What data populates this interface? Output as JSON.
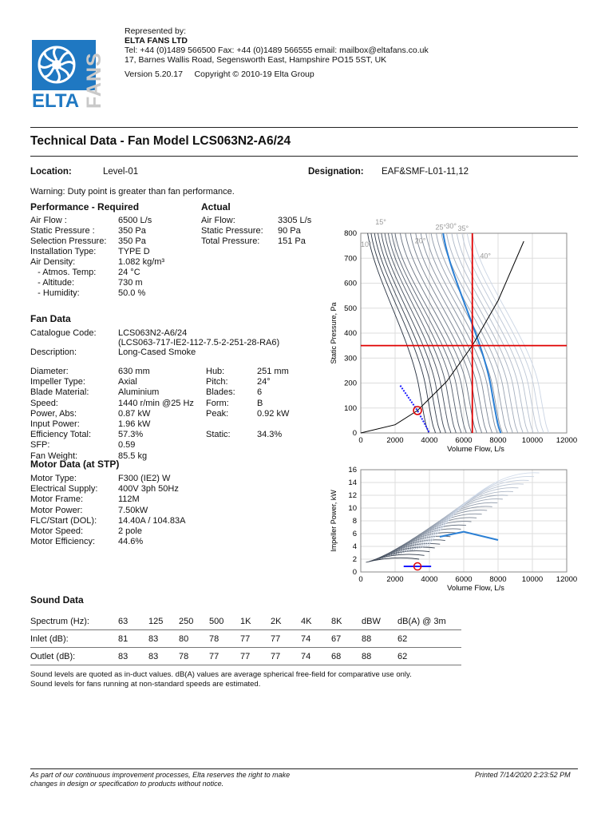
{
  "header": {
    "represented_by": "Represented by:",
    "company": "ELTA FANS LTD",
    "contact": "Tel: +44 (0)1489 566500  Fax: +44 (0)1489 566555  email: mailbox@eltafans.co.uk",
    "address": "17, Barnes Wallis Road, Segensworth East, Hampshire PO15 5ST, UK",
    "version": "Version 5.20.17     Copyright © 2010-19 Elta Group",
    "logo_text": "ELTA",
    "logo_vertical": "FANS"
  },
  "title": "Technical Data - Fan Model LCS063N2-A6/24",
  "location": {
    "label": "Location:",
    "value": "Level-01"
  },
  "designation": {
    "label": "Designation:",
    "value": "EAF&SMF-L01-11,12"
  },
  "warning": "Warning: Duty point is greater than fan performance.",
  "required": {
    "heading": "Performance - Required",
    "rows": [
      {
        "label": "Air Flow :",
        "value": "6500 L/s"
      },
      {
        "label": "Static Pressure :",
        "value": "350 Pa"
      },
      {
        "label": "Selection Pressure:",
        "value": "350 Pa"
      },
      {
        "label": "Installation Type:",
        "value": "TYPE D"
      },
      {
        "label": "Air Density:",
        "value": "1.082 kg/m³"
      },
      {
        "label": "   - Atmos. Temp:",
        "value": "24 °C"
      },
      {
        "label": "   - Altitude:",
        "value": "730 m"
      },
      {
        "label": "   - Humidity:",
        "value": "50.0 %"
      }
    ]
  },
  "actual": {
    "heading": "Actual",
    "rows": [
      {
        "label": "Air Flow:",
        "value": "3305 L/s"
      },
      {
        "label": "Static Pressure:",
        "value": "90 Pa"
      },
      {
        "label": "Total Pressure:",
        "value": "151 Pa"
      }
    ]
  },
  "fan_data": {
    "heading": "Fan Data",
    "catalogue_label": "Catalogue Code:",
    "catalogue_value": "LCS063N2-A6/24",
    "catalogue_value2": "(LCS063-717-IE2-112-7.5-2-251-28-RA6)",
    "description_label": "Description:",
    "description_value": "Long-Cased Smoke",
    "left": [
      {
        "label": "Diameter:",
        "value": "630 mm"
      },
      {
        "label": "Impeller Type:",
        "value": "Axial"
      },
      {
        "label": "Blade Material:",
        "value": "Aluminium"
      },
      {
        "label": "Speed:",
        "value": "1440 r/min  @25 Hz"
      },
      {
        "label": "Power, Abs:",
        "value": "0.87 kW"
      },
      {
        "label": "Input Power:",
        "value": "1.96 kW"
      },
      {
        "label": "Efficiency Total:",
        "value": "57.3%"
      },
      {
        "label": "SFP:",
        "value": "0.59"
      },
      {
        "label": "Fan Weight:",
        "value": "85.5 kg"
      }
    ],
    "right": [
      {
        "label": "Hub:",
        "value": "251 mm"
      },
      {
        "label": "Pitch:",
        "value": "24°"
      },
      {
        "label": "Blades:",
        "value": "6"
      },
      {
        "label": "Form:",
        "value": "B"
      },
      {
        "label": "Peak:",
        "value": "0.92 kW"
      },
      {
        "label": "",
        "value": ""
      },
      {
        "label": "Static:",
        "value": "34.3%"
      }
    ]
  },
  "motor_data": {
    "heading": "Motor Data (at STP)",
    "rows": [
      {
        "label": "Motor Type:",
        "value": "F300 (IE2) W"
      },
      {
        "label": "Electrical Supply:",
        "value": "400V 3ph 50Hz"
      },
      {
        "label": "Motor Frame:",
        "value": "112M"
      },
      {
        "label": "Motor Power:",
        "value": "7.50kW"
      },
      {
        "label": "FLC/Start (DOL):",
        "value": "14.40A / 104.83A"
      },
      {
        "label": "Motor Speed:",
        "value": "2 pole"
      },
      {
        "label": "Motor Efficiency:",
        "value": "44.6%"
      }
    ]
  },
  "sound": {
    "heading": "Sound Data",
    "header": [
      "Spectrum (Hz):",
      "63",
      "125",
      "250",
      "500",
      "1K",
      "2K",
      "4K",
      "8K",
      "dBW",
      "dB(A) @ 3m"
    ],
    "rows": [
      [
        "Inlet (dB):",
        "81",
        "83",
        "80",
        "78",
        "77",
        "77",
        "74",
        "67",
        "88",
        "62"
      ],
      [
        "Outlet (dB):",
        "83",
        "83",
        "78",
        "77",
        "77",
        "77",
        "74",
        "68",
        "88",
        "62"
      ]
    ],
    "note1": "Sound levels are quoted as in-duct values. dB(A) values are average spherical free-field for comparative use only.",
    "note2": "Sound levels for fans running at non-standard speeds are estimated."
  },
  "footer": {
    "left1": "As part of our continuous improvement processes, Elta reserves the right to make",
    "left2": "changes in design or specification to products without notice.",
    "right": "Printed 7/14/2020 2:23:52 PM"
  },
  "chart_data": [
    {
      "type": "line",
      "title": "",
      "xlabel": "Volume Flow, L/s",
      "ylabel": "Static Pressure, Pa",
      "xlim": [
        0,
        12000
      ],
      "ylim": [
        0,
        800
      ],
      "xticks": [
        0,
        2000,
        4000,
        6000,
        8000,
        10000,
        12000
      ],
      "yticks": [
        0,
        100,
        200,
        300,
        400,
        500,
        600,
        700,
        800
      ],
      "grid": true,
      "angle_labels": [
        "10°",
        "15°",
        "20°",
        "25°",
        "30°",
        "35°",
        "40°"
      ],
      "duty_point": {
        "x": 6500,
        "y": 350,
        "color": "#e00000"
      },
      "operating_point": {
        "x": 3305,
        "y": 90
      },
      "system_curve": {
        "x": [
          0,
          2000,
          3305,
          5000,
          6500,
          8000,
          9500
        ],
        "y": [
          0,
          33,
          90,
          206,
          350,
          530,
          768
        ]
      },
      "blade_curves_x_at_800": [
        400,
        600,
        800,
        1000,
        1200,
        1400,
        1600,
        1800,
        2000,
        2300,
        2600,
        2900,
        3200,
        3500,
        3800,
        4100,
        4400,
        4700,
        5000,
        5300,
        5600,
        5900,
        6200,
        6500
      ],
      "blade_curves_x_at_0": [
        3800,
        4200,
        4500,
        4800,
        5100,
        5400,
        5700,
        6000,
        6300,
        6600,
        6900,
        7200,
        7500,
        7800,
        8100,
        8400,
        8700,
        9000,
        9300,
        9600,
        9900,
        10200,
        10500,
        10800
      ],
      "highlight_curve": {
        "x_at_800": 4800,
        "x_at_0": 8000,
        "color": "#2a7fd4"
      },
      "stall_line": {
        "x": [
          2300,
          2800,
          3300,
          3700,
          4000
        ],
        "y": [
          190,
          140,
          90,
          40,
          0
        ],
        "color": "#1a1aff"
      }
    },
    {
      "type": "line",
      "title": "",
      "xlabel": "Volume Flow, L/s",
      "ylabel": "Impeller Power, kW",
      "xlim": [
        0,
        12000
      ],
      "ylim": [
        0,
        16
      ],
      "xticks": [
        0,
        2000,
        4000,
        6000,
        8000,
        10000,
        12000
      ],
      "yticks": [
        0,
        2,
        4,
        6,
        8,
        10,
        12,
        14,
        16
      ],
      "grid": true,
      "operating_point": {
        "x": 3305,
        "y": 0.87
      },
      "band_range": [
        2500,
        4100
      ],
      "highlight_curve": {
        "x": [
          4600,
          6000,
          8000
        ],
        "y": [
          5.5,
          6.3,
          5.0
        ],
        "color": "#2a7fd4"
      }
    }
  ]
}
